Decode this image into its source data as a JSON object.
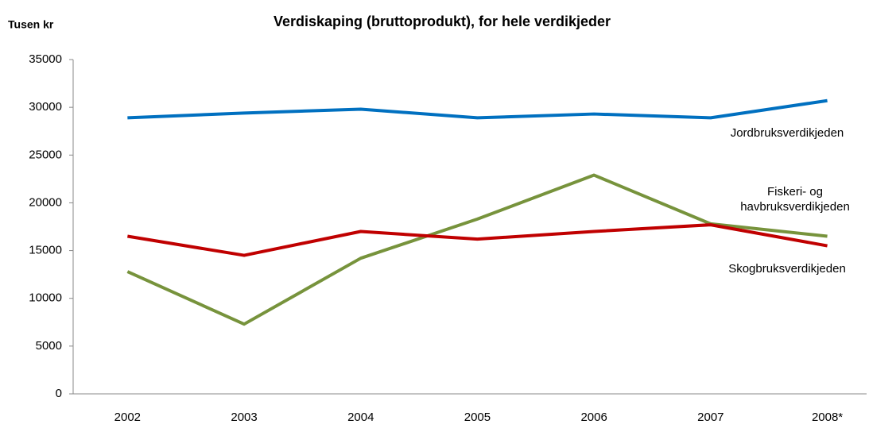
{
  "chart_data": {
    "type": "line",
    "title": "Verdiskaping (bruttoprodukt), for hele verdikjeder",
    "ylabel": "Tusen kr",
    "categories": [
      "2002",
      "2003",
      "2004",
      "2005",
      "2006",
      "2007",
      "2008*"
    ],
    "series": [
      {
        "name": "Jordbruksverdikjeden",
        "color": "#0070c0",
        "values": [
          28900,
          29400,
          29800,
          28900,
          29300,
          28900,
          30700
        ]
      },
      {
        "name": "Fiskeri- og havbruksverdikjeden",
        "color": "#77933c",
        "values": [
          12800,
          7300,
          14200,
          18300,
          22900,
          17800,
          16500
        ]
      },
      {
        "name": "Skogbruksverdikjeden",
        "color": "#c00000",
        "values": [
          16500,
          14500,
          17000,
          16200,
          17000,
          17700,
          15500
        ]
      }
    ],
    "ylim": [
      0,
      35000
    ],
    "yticks": [
      0,
      5000,
      10000,
      15000,
      20000,
      25000,
      30000,
      35000
    ],
    "grid": false
  }
}
